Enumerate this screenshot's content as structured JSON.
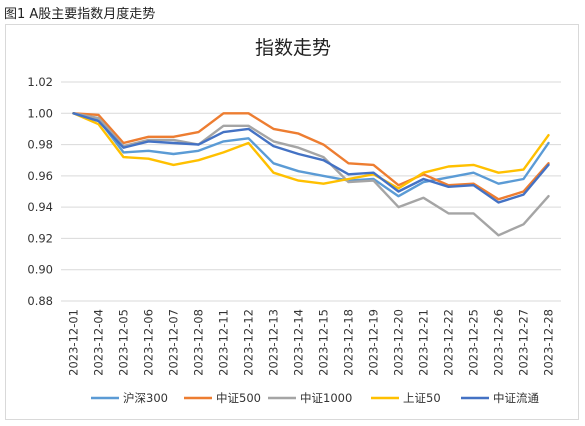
{
  "figure_caption": "图1 A股主要指数月度走势",
  "chart_data": {
    "type": "line",
    "title": "指数走势",
    "xlabel": "",
    "ylabel": "",
    "ylim": [
      0.88,
      1.02
    ],
    "yticks": [
      "0.88",
      "0.90",
      "0.92",
      "0.94",
      "0.96",
      "0.98",
      "1.00",
      "1.02"
    ],
    "grid": true,
    "legend_position": "bottom",
    "categories": [
      "2023-12-01",
      "2023-12-04",
      "2023-12-05",
      "2023-12-06",
      "2023-12-07",
      "2023-12-08",
      "2023-12-11",
      "2023-12-12",
      "2023-12-13",
      "2023-12-14",
      "2023-12-15",
      "2023-12-18",
      "2023-12-19",
      "2023-12-20",
      "2023-12-21",
      "2023-12-22",
      "2023-12-25",
      "2023-12-26",
      "2023-12-27",
      "2023-12-28"
    ],
    "series": [
      {
        "name": "沪深300",
        "color": "#5B9BD5",
        "values": [
          1.0,
          0.996,
          0.975,
          0.976,
          0.974,
          0.976,
          0.982,
          0.984,
          0.968,
          0.963,
          0.96,
          0.957,
          0.958,
          0.947,
          0.956,
          0.959,
          0.962,
          0.955,
          0.958,
          0.981
        ]
      },
      {
        "name": "中证500",
        "color": "#ED7D31",
        "values": [
          1.0,
          0.999,
          0.981,
          0.985,
          0.985,
          0.988,
          1.0,
          1.0,
          0.99,
          0.987,
          0.98,
          0.968,
          0.967,
          0.954,
          0.961,
          0.954,
          0.955,
          0.945,
          0.95,
          0.968
        ]
      },
      {
        "name": "中证1000",
        "color": "#A5A5A5",
        "values": [
          1.0,
          0.997,
          0.979,
          0.983,
          0.983,
          0.98,
          0.992,
          0.992,
          0.982,
          0.978,
          0.972,
          0.956,
          0.957,
          0.94,
          0.946,
          0.936,
          0.936,
          0.922,
          0.929,
          0.947
        ]
      },
      {
        "name": "上证50",
        "color": "#FFC000",
        "values": [
          1.0,
          0.993,
          0.972,
          0.971,
          0.967,
          0.97,
          0.975,
          0.981,
          0.962,
          0.957,
          0.955,
          0.958,
          0.961,
          0.952,
          0.962,
          0.966,
          0.967,
          0.962,
          0.964,
          0.986
        ]
      },
      {
        "name": "中证流通",
        "color": "#4472C4",
        "values": [
          1.0,
          0.995,
          0.978,
          0.982,
          0.981,
          0.98,
          0.988,
          0.99,
          0.979,
          0.974,
          0.97,
          0.961,
          0.962,
          0.95,
          0.958,
          0.953,
          0.954,
          0.943,
          0.948,
          0.967
        ]
      }
    ]
  }
}
